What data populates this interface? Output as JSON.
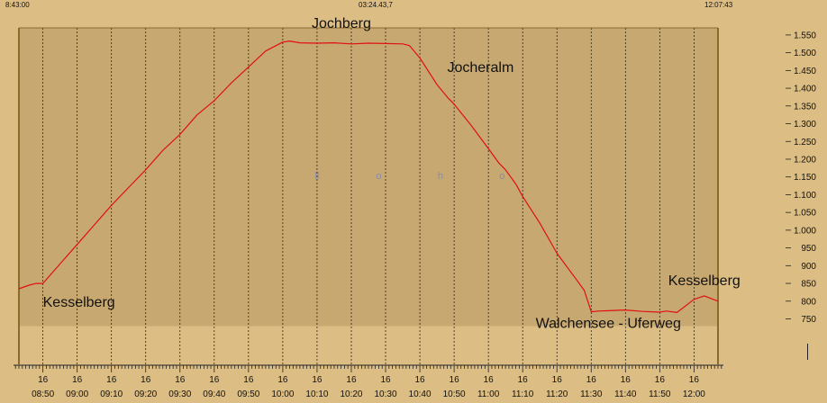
{
  "header": {
    "start_time": "8:43:00",
    "duration": "03:24.43,7",
    "end_time": "12:07:43"
  },
  "colors": {
    "background": "#dcbd84",
    "plot_area": "#c8a871",
    "line": "#e01010",
    "frame": "#8c6a2e"
  },
  "chart_data": {
    "type": "line",
    "title": "",
    "xlabel": "",
    "ylabel": "",
    "x_range": [
      "08:43",
      "12:07"
    ],
    "ylim": [
      750,
      1570
    ],
    "y_ticks": [
      "750",
      "800",
      "850",
      "900",
      "950",
      "1.000",
      "1.050",
      "1.100",
      "1.150",
      "1.200",
      "1.250",
      "1.300",
      "1.350",
      "1.400",
      "1.450",
      "1.500",
      "1.550"
    ],
    "y_tick_values": [
      750,
      800,
      850,
      900,
      950,
      1000,
      1050,
      1100,
      1150,
      1200,
      1250,
      1300,
      1350,
      1400,
      1450,
      1500,
      1550
    ],
    "x_ticks": [
      {
        "day": "16",
        "time": "08:50"
      },
      {
        "day": "16",
        "time": "09:00"
      },
      {
        "day": "16",
        "time": "09:10"
      },
      {
        "day": "16",
        "time": "09:20"
      },
      {
        "day": "16",
        "time": "09:30"
      },
      {
        "day": "16",
        "time": "09:40"
      },
      {
        "day": "16",
        "time": "09:50"
      },
      {
        "day": "16",
        "time": "10:00"
      },
      {
        "day": "16",
        "time": "10:10"
      },
      {
        "day": "16",
        "time": "10:20"
      },
      {
        "day": "16",
        "time": "10:30"
      },
      {
        "day": "16",
        "time": "10:40"
      },
      {
        "day": "16",
        "time": "10:50"
      },
      {
        "day": "16",
        "time": "11:00"
      },
      {
        "day": "16",
        "time": "11:10"
      },
      {
        "day": "16",
        "time": "11:20"
      },
      {
        "day": "16",
        "time": "11:30"
      },
      {
        "day": "16",
        "time": "11:40"
      },
      {
        "day": "16",
        "time": "11:50"
      },
      {
        "day": "16",
        "time": "12:00"
      }
    ],
    "grid": true,
    "series": [
      {
        "x": [
          "08:43",
          "08:46",
          "08:48",
          "08:50",
          "08:55",
          "09:00",
          "09:05",
          "09:10",
          "09:15",
          "09:20",
          "09:25",
          "09:30",
          "09:35",
          "09:40",
          "09:45",
          "09:50",
          "09:55",
          "10:00",
          "10:02",
          "10:05",
          "10:10",
          "10:15",
          "10:20",
          "10:25",
          "10:30",
          "10:35",
          "10:37",
          "10:40",
          "10:45",
          "10:48",
          "10:50",
          "10:55",
          "11:00",
          "11:03",
          "11:05",
          "11:08",
          "11:10",
          "11:15",
          "11:20",
          "11:25",
          "11:28",
          "11:30",
          "11:32",
          "11:35",
          "11:40",
          "11:45",
          "11:50",
          "11:52",
          "11:55",
          "12:00",
          "12:03",
          "12:07"
        ],
        "y": [
          835,
          845,
          850,
          850,
          905,
          960,
          1015,
          1070,
          1120,
          1170,
          1225,
          1270,
          1325,
          1365,
          1415,
          1460,
          1505,
          1530,
          1533,
          1528,
          1527,
          1528,
          1525,
          1527,
          1526,
          1525,
          1520,
          1485,
          1410,
          1375,
          1355,
          1295,
          1230,
          1190,
          1170,
          1130,
          1095,
          1020,
          935,
          870,
          830,
          770,
          772,
          773,
          775,
          771,
          769,
          772,
          768,
          805,
          815,
          800
        ]
      }
    ],
    "annotations": [
      {
        "text": "Kesselberg",
        "x": "08:50",
        "y": 850
      },
      {
        "text": "Jochberg",
        "x": "10:10",
        "y": 1527
      },
      {
        "text": "Jocheralm",
        "x": "10:48",
        "y": 1375
      },
      {
        "text": "Walchensee - Uferweg",
        "x": "11:35",
        "y": 773
      },
      {
        "text": "Kesselberg",
        "x": "12:03",
        "y": 815
      }
    ],
    "letters": [
      {
        "text": "ll",
        "x": "10:10"
      },
      {
        "text": "o",
        "x": "10:28"
      },
      {
        "text": "h",
        "x": "10:46"
      },
      {
        "text": "o",
        "x": "11:04"
      }
    ]
  }
}
